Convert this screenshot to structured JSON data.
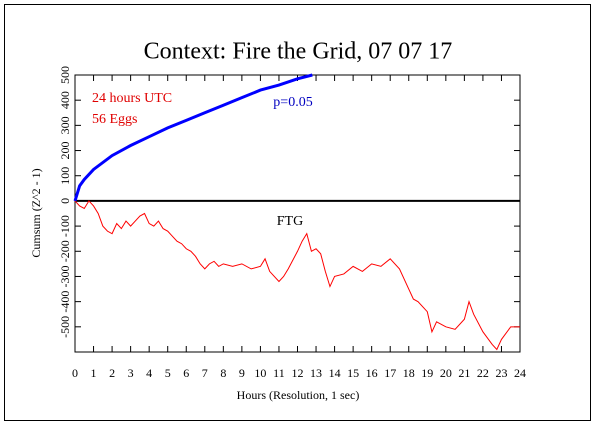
{
  "chart_data": {
    "type": "line",
    "title": "Context: Fire the Grid, 07 07 17",
    "info_lines": [
      "24 hours UTC",
      "56 Eggs"
    ],
    "x_label": "Hours (Resolution, 1 sec)",
    "y_label": "Cumsum (Z^2 - 1)",
    "xlim": [
      0,
      24
    ],
    "xticks": [
      0,
      1,
      2,
      3,
      4,
      5,
      6,
      7,
      8,
      9,
      10,
      11,
      12,
      13,
      14,
      15,
      16,
      17,
      18,
      19,
      20,
      21,
      22,
      23,
      24
    ],
    "ylim": [
      -600,
      500
    ],
    "yticks": [
      -500,
      -400,
      -300,
      -200,
      -100,
      0,
      100,
      200,
      300,
      400,
      500
    ],
    "series": [
      {
        "name": "FTG",
        "color": "#ff0000",
        "x": [
          0,
          0.25,
          0.5,
          0.75,
          1,
          1.25,
          1.5,
          1.75,
          2,
          2.25,
          2.5,
          2.75,
          3,
          3.25,
          3.5,
          3.75,
          4,
          4.25,
          4.5,
          4.75,
          5,
          5.25,
          5.5,
          5.75,
          6,
          6.25,
          6.5,
          6.75,
          7,
          7.25,
          7.5,
          7.75,
          8,
          8.5,
          9,
          9.5,
          10,
          10.25,
          10.5,
          11,
          11.25,
          11.5,
          12,
          12.25,
          12.5,
          12.75,
          13,
          13.25,
          13.5,
          13.75,
          14,
          14.5,
          15,
          15.5,
          16,
          16.5,
          17,
          17.5,
          18,
          18.25,
          18.5,
          19,
          19.25,
          19.5,
          20,
          20.5,
          21,
          21.25,
          21.5,
          22,
          22.5,
          22.75,
          23,
          23.5,
          24
        ],
        "values": [
          0,
          -20,
          -30,
          0,
          -20,
          -50,
          -100,
          -120,
          -130,
          -90,
          -110,
          -80,
          -100,
          -80,
          -60,
          -50,
          -90,
          -100,
          -80,
          -110,
          -120,
          -140,
          -160,
          -170,
          -190,
          -200,
          -220,
          -250,
          -270,
          -250,
          -240,
          -260,
          -250,
          -260,
          -250,
          -270,
          -260,
          -230,
          -280,
          -320,
          -300,
          -270,
          -200,
          -160,
          -130,
          -200,
          -190,
          -210,
          -280,
          -340,
          -300,
          -290,
          -260,
          -280,
          -250,
          -260,
          -230,
          -270,
          -350,
          -390,
          -400,
          -440,
          -520,
          -480,
          -500,
          -510,
          -470,
          -400,
          -450,
          -520,
          -570,
          -590,
          -550,
          -500,
          -500
        ]
      },
      {
        "name": "p=0.05",
        "color": "#0000ff",
        "x": [
          0,
          0.25,
          0.5,
          1,
          2,
          3,
          4,
          5,
          6,
          7,
          8,
          9,
          10,
          11,
          12,
          12.8
        ],
        "values": [
          0,
          60,
          85,
          125,
          180,
          220,
          255,
          290,
          320,
          350,
          380,
          410,
          440,
          460,
          485,
          500
        ]
      }
    ]
  }
}
